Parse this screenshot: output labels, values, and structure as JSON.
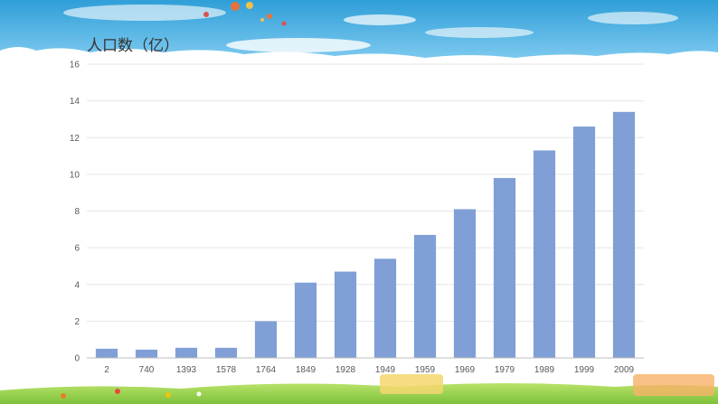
{
  "chart_data": {
    "type": "bar",
    "ylabel": "人口数（亿）",
    "xlabel": "",
    "title": "",
    "categories": [
      "2",
      "740",
      "1393",
      "1578",
      "1764",
      "1849",
      "1928",
      "1949",
      "1959",
      "1969",
      "1979",
      "1989",
      "1999",
      "2009"
    ],
    "values": [
      0.5,
      0.45,
      0.55,
      0.55,
      2.0,
      4.1,
      4.7,
      5.4,
      6.7,
      8.1,
      9.8,
      11.3,
      12.6,
      13.4
    ],
    "ylim": [
      0,
      16
    ],
    "yticks": [
      "0",
      "2",
      "4",
      "6",
      "8",
      "10",
      "12",
      "14",
      "16"
    ],
    "grid": true,
    "bar_color": "#7f9fd6",
    "legend": "none"
  }
}
